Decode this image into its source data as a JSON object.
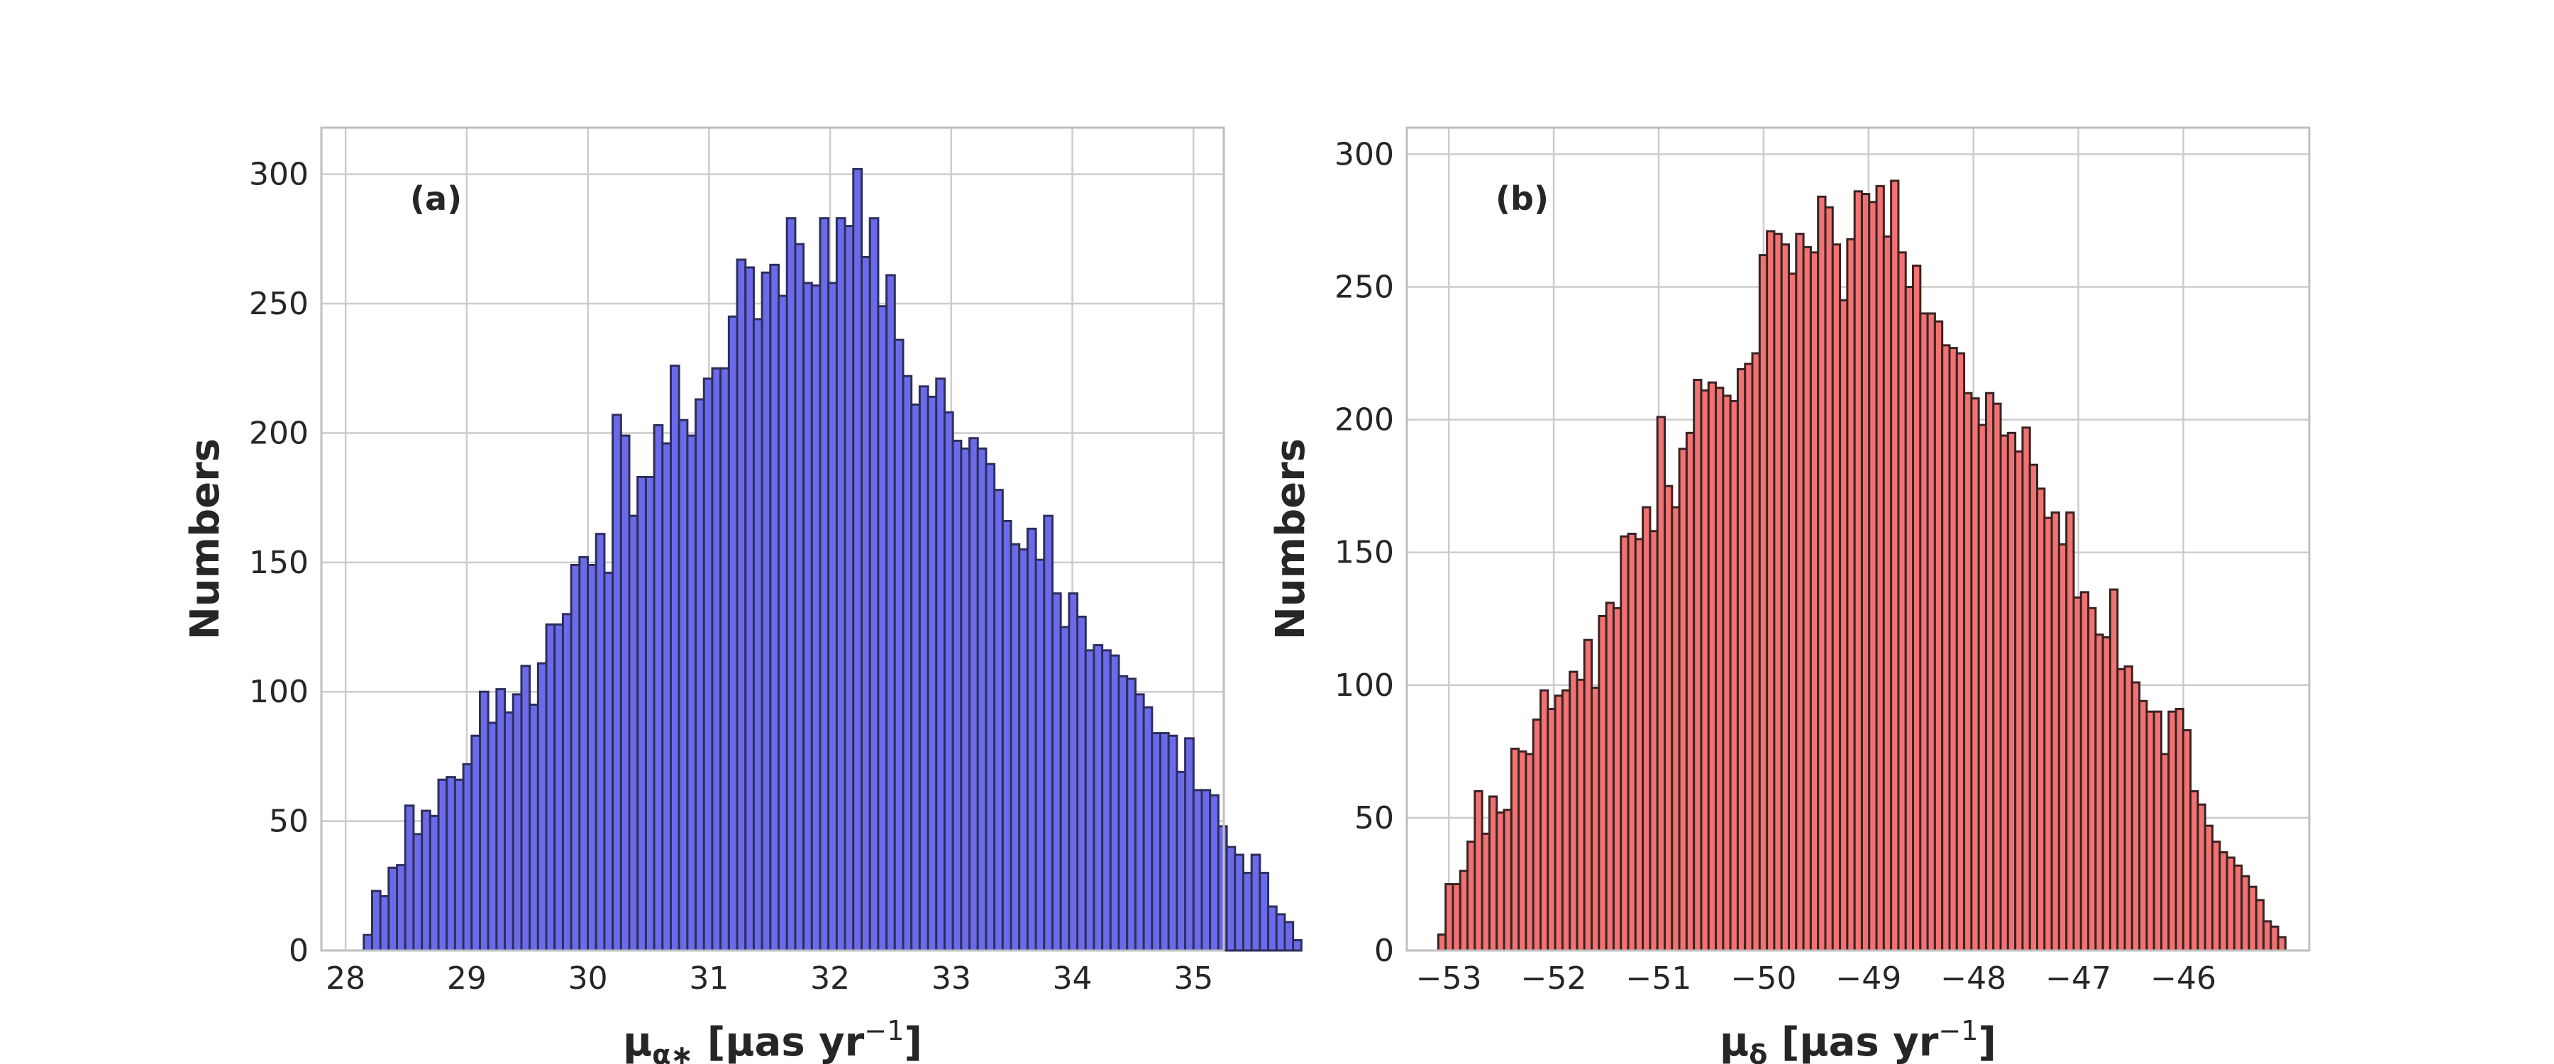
{
  "chart_data": [
    {
      "type": "bar",
      "panel_label": "(a)",
      "xlabel": {
        "symbol": "μ",
        "sub": "α∗",
        "units": " [μas yr",
        "sup": "−1",
        "close": "]"
      },
      "ylabel": "Numbers",
      "xlim": [
        27.8,
        35.25
      ],
      "ylim": [
        0,
        318
      ],
      "xticks": [
        28,
        29,
        30,
        31,
        32,
        33,
        34,
        35
      ],
      "xtick_labels": [
        "28",
        "29",
        "30",
        "31",
        "32",
        "33",
        "34",
        "35"
      ],
      "yticks": [
        0,
        50,
        100,
        150,
        200,
        250,
        300
      ],
      "ytick_labels": [
        "0",
        "50",
        "100",
        "150",
        "200",
        "250",
        "300"
      ],
      "bin_start": 28.15,
      "bin_width": 0.0685,
      "values": [
        6,
        23,
        21,
        32,
        33,
        56,
        45,
        54,
        52,
        66,
        67,
        66,
        72,
        83,
        100,
        88,
        101,
        92,
        99,
        110,
        95,
        111,
        126,
        126,
        130,
        149,
        152,
        149,
        161,
        146,
        207,
        199,
        168,
        183,
        183,
        203,
        196,
        226,
        205,
        199,
        213,
        221,
        225,
        225,
        245,
        267,
        264,
        244,
        262,
        265,
        253,
        283,
        273,
        258,
        257,
        283,
        258,
        283,
        280,
        302,
        268,
        283,
        249,
        261,
        236,
        222,
        211,
        218,
        214,
        221,
        208,
        197,
        194,
        198,
        194,
        188,
        178,
        166,
        157,
        155,
        163,
        151,
        168,
        138,
        125,
        138,
        129,
        116,
        118,
        116,
        114,
        106,
        105,
        99,
        94,
        84,
        84,
        83,
        69,
        82,
        62,
        62,
        60,
        48,
        40,
        37,
        30,
        37,
        30,
        17,
        14,
        11,
        4
      ]
    },
    {
      "type": "bar",
      "panel_label": "(b)",
      "xlabel": {
        "symbol": "μ",
        "sub": "δ",
        "units": " [μas yr",
        "sup": "−1",
        "close": "]"
      },
      "ylabel": "Numbers",
      "xlim": [
        -53.4,
        -44.8
      ],
      "ylim": [
        0,
        310
      ],
      "xticks": [
        -53,
        -52,
        -51,
        -50,
        -49,
        -48,
        -47,
        -46
      ],
      "xtick_labels": [
        "−53",
        "−52",
        "−51",
        "−50",
        "−49",
        "−48",
        "−47",
        "−46"
      ],
      "yticks": [
        0,
        50,
        100,
        150,
        200,
        250,
        300
      ],
      "ytick_labels": [
        "0",
        "50",
        "100",
        "150",
        "200",
        "250",
        "300"
      ],
      "bin_start": -53.1,
      "bin_width": 0.0696,
      "values": [
        6,
        25,
        25,
        30,
        41,
        60,
        44,
        58,
        52,
        53,
        76,
        75,
        74,
        87,
        98,
        91,
        96,
        98,
        105,
        102,
        117,
        99,
        126,
        131,
        129,
        156,
        157,
        155,
        167,
        158,
        201,
        175,
        167,
        189,
        195,
        215,
        211,
        214,
        212,
        209,
        207,
        219,
        221,
        225,
        262,
        271,
        270,
        266,
        255,
        270,
        265,
        263,
        284,
        280,
        266,
        245,
        268,
        286,
        285,
        282,
        288,
        269,
        290,
        263,
        250,
        258,
        240,
        240,
        237,
        228,
        227,
        225,
        210,
        208,
        198,
        210,
        206,
        194,
        195,
        188,
        197,
        183,
        174,
        163,
        165,
        153,
        165,
        133,
        135,
        129,
        119,
        118,
        136,
        106,
        107,
        101,
        94,
        90,
        90,
        74,
        90,
        91,
        83,
        60,
        55,
        47,
        41,
        37,
        35,
        32,
        28,
        24,
        19,
        11,
        9,
        5
      ]
    }
  ]
}
